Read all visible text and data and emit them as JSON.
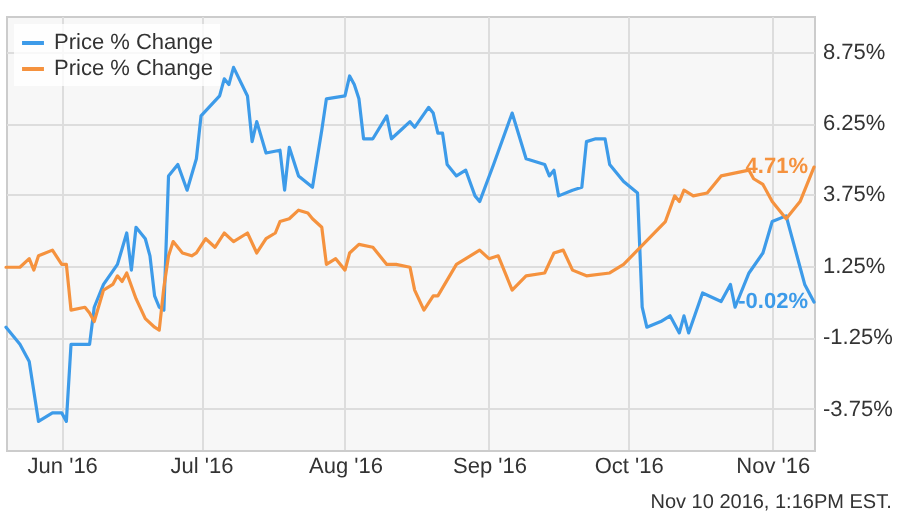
{
  "chart_data": {
    "type": "line",
    "annotations": [
      "Nov 10 2016, 1:16PM EST.",
      {
        "text": "4.71%",
        "x": "2016-11-10",
        "y": 4.71
      },
      {
        "text": "-0.02%",
        "x": "2016-11-10",
        "y": -0.02
      }
    ],
    "xlim": [
      "2016-05-20",
      "2016-11-10"
    ],
    "xticks": [
      {
        "value": "2016-06-01",
        "label": "Jun '16"
      },
      {
        "value": "2016-07-01",
        "label": "Jul '16"
      },
      {
        "value": "2016-08-01",
        "label": "Aug '16"
      },
      {
        "value": "2016-09-01",
        "label": "Sep '16"
      },
      {
        "value": "2016-10-01",
        "label": "Oct '16"
      },
      {
        "value": "2016-11-01",
        "label": "Nov '16"
      }
    ],
    "ylim": [
      -5.2,
      10
    ],
    "yticks": [
      {
        "value": -3.75,
        "label": "-3.75%"
      },
      {
        "value": -1.25,
        "label": "-1.25%"
      },
      {
        "value": 1.25,
        "label": "1.25%"
      },
      {
        "value": 3.75,
        "label": "3.75%"
      },
      {
        "value": 6.25,
        "label": "6.25%"
      },
      {
        "value": 8.75,
        "label": "8.75%"
      }
    ],
    "grid": true,
    "legend": "top left",
    "line_style": "solid",
    "marker": "none",
    "series": [
      {
        "name": "Price % Change",
        "color": "#3d9be9",
        "x": [
          "2016-05-20",
          "2016-05-23",
          "2016-05-25",
          "2016-05-27",
          "2016-05-30",
          "2016-06-01",
          "2016-06-02",
          "2016-06-03",
          "2016-06-07",
          "2016-06-08",
          "2016-06-10",
          "2016-06-13",
          "2016-06-15",
          "2016-06-16",
          "2016-06-17",
          "2016-06-19",
          "2016-06-20",
          "2016-06-21",
          "2016-06-22",
          "2016-06-23",
          "2016-06-24",
          "2016-06-26",
          "2016-06-28",
          "2016-06-30",
          "2016-07-01",
          "2016-07-05",
          "2016-07-06",
          "2016-07-07",
          "2016-07-08",
          "2016-07-11",
          "2016-07-12",
          "2016-07-13",
          "2016-07-15",
          "2016-07-18",
          "2016-07-19",
          "2016-07-20",
          "2016-07-22",
          "2016-07-25",
          "2016-07-27",
          "2016-07-28",
          "2016-08-01",
          "2016-08-02",
          "2016-08-03",
          "2016-08-04",
          "2016-08-05",
          "2016-08-07",
          "2016-08-10",
          "2016-08-11",
          "2016-08-13",
          "2016-08-15",
          "2016-08-16",
          "2016-08-19",
          "2016-08-20",
          "2016-08-21",
          "2016-08-22",
          "2016-08-23",
          "2016-08-25",
          "2016-08-27",
          "2016-08-29",
          "2016-08-30",
          "2016-09-02",
          "2016-09-06",
          "2016-09-09",
          "2016-09-13",
          "2016-09-14",
          "2016-09-15",
          "2016-09-16",
          "2016-09-19",
          "2016-09-21",
          "2016-09-22",
          "2016-09-24",
          "2016-09-26",
          "2016-09-27",
          "2016-09-30",
          "2016-10-03",
          "2016-10-04",
          "2016-10-05",
          "2016-10-08",
          "2016-10-10",
          "2016-10-12",
          "2016-10-13",
          "2016-10-14",
          "2016-10-17",
          "2016-10-21",
          "2016-10-23",
          "2016-10-24",
          "2016-10-27",
          "2016-10-30",
          "2016-11-01",
          "2016-11-04",
          "2016-11-07",
          "2016-11-08",
          "2016-11-10"
        ],
        "values": [
          -0.9,
          -1.5,
          -2.1,
          -4.2,
          -3.9,
          -3.9,
          -4.2,
          -1.5,
          -1.5,
          -0.2,
          0.6,
          1.3,
          2.4,
          1.1,
          2.6,
          2.2,
          1.6,
          0.2,
          -0.2,
          -0.3,
          4.4,
          4.8,
          3.9,
          5.0,
          6.5,
          7.2,
          7.8,
          7.6,
          8.2,
          7.2,
          5.6,
          6.3,
          5.2,
          5.3,
          3.9,
          5.4,
          4.4,
          4.0,
          6.0,
          7.1,
          7.2,
          7.9,
          7.6,
          7.1,
          5.7,
          5.7,
          6.5,
          5.7,
          6.0,
          6.3,
          6.1,
          6.8,
          6.6,
          5.9,
          5.9,
          4.8,
          4.4,
          4.6,
          3.7,
          3.5,
          4.8,
          6.6,
          5.0,
          4.8,
          4.4,
          4.6,
          3.7,
          3.9,
          4.0,
          5.6,
          5.7,
          5.7,
          4.8,
          4.2,
          3.8,
          -0.2,
          -0.9,
          -0.7,
          -0.5,
          -1.1,
          -0.5,
          -1.1,
          0.3,
          0.0,
          0.6,
          -0.2,
          1.0,
          1.7,
          2.8,
          3.0,
          1.2,
          0.6,
          -0.02
        ]
      },
      {
        "name": "Price % Change",
        "color": "#f5923e",
        "x": [
          "2016-05-20",
          "2016-05-23",
          "2016-05-25",
          "2016-05-26",
          "2016-05-27",
          "2016-05-30",
          "2016-06-01",
          "2016-06-02",
          "2016-06-03",
          "2016-06-06",
          "2016-06-07",
          "2016-06-08",
          "2016-06-10",
          "2016-06-12",
          "2016-06-13",
          "2016-06-14",
          "2016-06-15",
          "2016-06-17",
          "2016-06-19",
          "2016-06-21",
          "2016-06-22",
          "2016-06-23",
          "2016-06-24",
          "2016-06-25",
          "2016-06-27",
          "2016-06-29",
          "2016-06-30",
          "2016-07-02",
          "2016-07-04",
          "2016-07-06",
          "2016-07-08",
          "2016-07-11",
          "2016-07-13",
          "2016-07-15",
          "2016-07-17",
          "2016-07-18",
          "2016-07-20",
          "2016-07-22",
          "2016-07-24",
          "2016-07-25",
          "2016-07-27",
          "2016-07-28",
          "2016-07-30",
          "2016-08-01",
          "2016-08-02",
          "2016-08-04",
          "2016-08-07",
          "2016-08-09",
          "2016-08-10",
          "2016-08-12",
          "2016-08-15",
          "2016-08-16",
          "2016-08-18",
          "2016-08-20",
          "2016-08-21",
          "2016-08-25",
          "2016-08-30",
          "2016-09-01",
          "2016-09-03",
          "2016-09-06",
          "2016-09-09",
          "2016-09-13",
          "2016-09-15",
          "2016-09-17",
          "2016-09-19",
          "2016-09-22",
          "2016-09-27",
          "2016-09-30",
          "2016-10-03",
          "2016-10-06",
          "2016-10-09",
          "2016-10-11",
          "2016-10-12",
          "2016-10-13",
          "2016-10-15",
          "2016-10-18",
          "2016-10-21",
          "2016-10-27",
          "2016-10-28",
          "2016-10-30",
          "2016-11-01",
          "2016-11-04",
          "2016-11-07",
          "2016-11-10"
        ],
        "values": [
          1.2,
          1.2,
          1.5,
          1.1,
          1.6,
          1.8,
          1.3,
          1.3,
          -0.3,
          -0.2,
          -0.4,
          -0.7,
          0.4,
          0.6,
          0.9,
          0.7,
          1.0,
          0.1,
          -0.6,
          -0.9,
          -1.0,
          0.5,
          1.6,
          2.1,
          1.7,
          1.6,
          1.7,
          2.2,
          1.9,
          2.4,
          2.1,
          2.4,
          1.7,
          2.2,
          2.4,
          2.8,
          2.9,
          3.2,
          3.1,
          2.9,
          2.6,
          1.3,
          1.5,
          1.1,
          1.7,
          2.0,
          1.9,
          1.5,
          1.3,
          1.3,
          1.2,
          0.4,
          -0.3,
          0.2,
          0.2,
          1.3,
          1.8,
          1.5,
          1.6,
          0.4,
          0.9,
          1.0,
          1.7,
          1.8,
          1.1,
          0.9,
          1.0,
          1.3,
          1.8,
          2.3,
          2.8,
          3.7,
          3.5,
          3.9,
          3.7,
          3.8,
          4.4,
          4.6,
          4.3,
          4.1,
          3.5,
          2.9,
          3.5,
          4.71
        ]
      }
    ]
  }
}
